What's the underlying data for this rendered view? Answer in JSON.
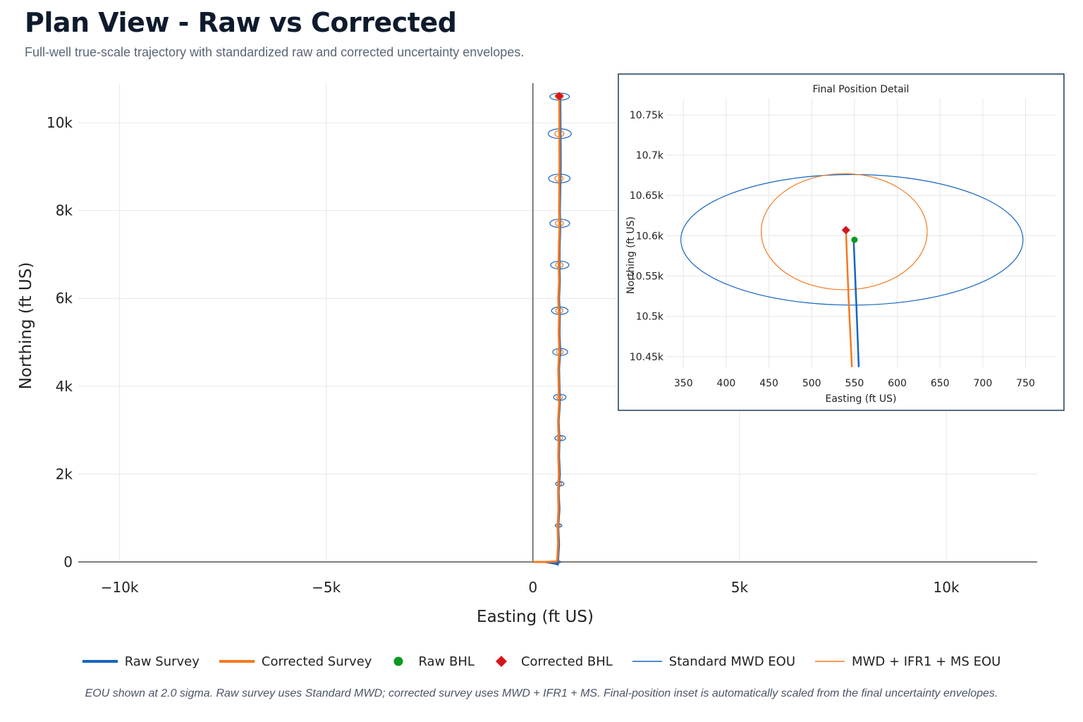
{
  "header": {
    "title": "Plan View - Raw vs Corrected",
    "subtitle": "Full-well true-scale trajectory with standardized raw and corrected uncertainty envelopes."
  },
  "colors": {
    "raw": "#1565c0",
    "corrected": "#f47920",
    "raw_bhl": "#0b9a1f",
    "corrected_bhl": "#d7141e",
    "grid": "#e6e6e6",
    "axis": "#333333",
    "inset_border": "#1f3b57"
  },
  "chart_data": [
    {
      "type": "line",
      "title": "",
      "xlabel": "Easting (ft US)",
      "ylabel": "Northing (ft US)",
      "xlim": [
        -11000,
        12200
      ],
      "ylim": [
        0,
        10900
      ],
      "x_ticks": [
        -10000,
        -5000,
        0,
        5000,
        10000
      ],
      "x_tick_labels": [
        "−10k",
        "−5k",
        "0",
        "5k",
        "10k"
      ],
      "y_ticks": [
        0,
        2000,
        4000,
        6000,
        8000,
        10000
      ],
      "y_tick_labels": [
        "0",
        "2k",
        "4k",
        "6k",
        "8k",
        "10k"
      ],
      "grid": true,
      "series": [
        {
          "name": "Raw Survey",
          "x": [
            0,
            300,
            560,
            600,
            630,
            610,
            640,
            620,
            650,
            630,
            640,
            620,
            650,
            640,
            630,
            660,
            640,
            650,
            630,
            650,
            640,
            645,
            660,
            650,
            670,
            660
          ],
          "y": [
            0,
            0,
            -40,
            -60,
            400,
            800,
            1200,
            1600,
            2000,
            2400,
            2800,
            3200,
            3600,
            4000,
            4400,
            4800,
            5200,
            5600,
            6000,
            6400,
            6800,
            7200,
            7600,
            8000,
            9000,
            10595
          ]
        },
        {
          "name": "Corrected Survey",
          "x": [
            0,
            300,
            560,
            590,
            610,
            600,
            620,
            610,
            630,
            615,
            625,
            610,
            635,
            625,
            615,
            640,
            625,
            635,
            615,
            635,
            625,
            630,
            645,
            635,
            645,
            640
          ],
          "y": [
            0,
            0,
            10,
            40,
            400,
            800,
            1200,
            1600,
            2000,
            2400,
            2800,
            3200,
            3600,
            4000,
            4400,
            4800,
            5200,
            5600,
            6000,
            6400,
            6800,
            7200,
            7600,
            8000,
            9000,
            10607
          ]
        },
        {
          "name": "Raw BHL",
          "x": [
            646
          ],
          "y": [
            10595
          ]
        },
        {
          "name": "Corrected BHL",
          "x": [
            637
          ],
          "y": [
            10607
          ]
        }
      ],
      "eou_sigma": 2.0,
      "eou_standard": [
        {
          "x": 600,
          "y": 0,
          "a": 30,
          "b": 30
        },
        {
          "x": 620,
          "y": 830,
          "a": 80,
          "b": 40
        },
        {
          "x": 650,
          "y": 1780,
          "a": 100,
          "b": 50
        },
        {
          "x": 660,
          "y": 2820,
          "a": 130,
          "b": 60
        },
        {
          "x": 650,
          "y": 3750,
          "a": 150,
          "b": 70
        },
        {
          "x": 660,
          "y": 4780,
          "a": 180,
          "b": 80
        },
        {
          "x": 650,
          "y": 5720,
          "a": 200,
          "b": 85
        },
        {
          "x": 650,
          "y": 6760,
          "a": 220,
          "b": 90
        },
        {
          "x": 650,
          "y": 7710,
          "a": 240,
          "b": 95
        },
        {
          "x": 640,
          "y": 8730,
          "a": 260,
          "b": 100
        },
        {
          "x": 650,
          "y": 9750,
          "a": 280,
          "b": 110
        },
        {
          "x": 646,
          "y": 10595,
          "a": 235,
          "b": 80
        }
      ],
      "eou_corrected": [
        {
          "x": 600,
          "y": 0,
          "a": 20,
          "b": 20
        },
        {
          "x": 620,
          "y": 830,
          "a": 40,
          "b": 30
        },
        {
          "x": 645,
          "y": 1780,
          "a": 50,
          "b": 40
        },
        {
          "x": 655,
          "y": 2820,
          "a": 60,
          "b": 45
        },
        {
          "x": 645,
          "y": 3750,
          "a": 70,
          "b": 50
        },
        {
          "x": 650,
          "y": 4780,
          "a": 80,
          "b": 55
        },
        {
          "x": 640,
          "y": 5720,
          "a": 85,
          "b": 60
        },
        {
          "x": 640,
          "y": 6760,
          "a": 90,
          "b": 62
        },
        {
          "x": 640,
          "y": 7710,
          "a": 95,
          "b": 65
        },
        {
          "x": 630,
          "y": 8730,
          "a": 100,
          "b": 68
        },
        {
          "x": 640,
          "y": 9750,
          "a": 110,
          "b": 70
        },
        {
          "x": 637,
          "y": 10605,
          "a": 96,
          "b": 70
        }
      ]
    },
    {
      "type": "line",
      "title": "Final Position Detail",
      "xlabel": "Easting (ft US)",
      "ylabel": "Northing (ft US)",
      "xlim": [
        330,
        785
      ],
      "ylim": [
        10435,
        10770
      ],
      "x_ticks": [
        350,
        400,
        450,
        500,
        550,
        600,
        650,
        700,
        750
      ],
      "x_tick_labels": [
        "350",
        "400",
        "450",
        "500",
        "550",
        "600",
        "650",
        "700",
        "750"
      ],
      "y_ticks": [
        10450,
        10500,
        10550,
        10600,
        10650,
        10700,
        10750
      ],
      "y_tick_labels": [
        "10.45k",
        "10.5k",
        "10.55k",
        "10.6k",
        "10.65k",
        "10.7k",
        "10.75k"
      ],
      "grid": true,
      "series": [
        {
          "name": "Raw Survey",
          "x": [
            549,
            552,
            555
          ],
          "y": [
            10595,
            10520,
            10437
          ]
        },
        {
          "name": "Corrected Survey",
          "x": [
            540,
            543,
            547
          ],
          "y": [
            10607,
            10525,
            10437
          ]
        },
        {
          "name": "Raw BHL",
          "x": [
            550
          ],
          "y": [
            10595
          ]
        },
        {
          "name": "Corrected BHL",
          "x": [
            540
          ],
          "y": [
            10607
          ]
        }
      ],
      "eou_standard": [
        {
          "x": 547,
          "y": 10595,
          "a": 200,
          "b": 81
        }
      ],
      "eou_corrected": [
        {
          "x": 538,
          "y": 10605,
          "a": 97,
          "b": 72
        }
      ]
    }
  ],
  "legend": {
    "items": [
      {
        "label": "Raw Survey",
        "kind": "thick-line",
        "color": "#1565c0"
      },
      {
        "label": "Corrected Survey",
        "kind": "thick-line",
        "color": "#f47920"
      },
      {
        "label": "Raw BHL",
        "kind": "dot",
        "color": "#0b9a1f"
      },
      {
        "label": "Corrected BHL",
        "kind": "diamond",
        "color": "#d7141e"
      },
      {
        "label": "Standard MWD EOU",
        "kind": "thin-line",
        "color": "#1565c0"
      },
      {
        "label": "MWD + IFR1 + MS EOU",
        "kind": "thin-line",
        "color": "#f47920"
      }
    ]
  },
  "footnote": "EOU shown at 2.0 sigma. Raw survey uses Standard MWD; corrected survey uses MWD + IFR1 + MS. Final-position inset is automatically scaled from the final uncertainty envelopes."
}
